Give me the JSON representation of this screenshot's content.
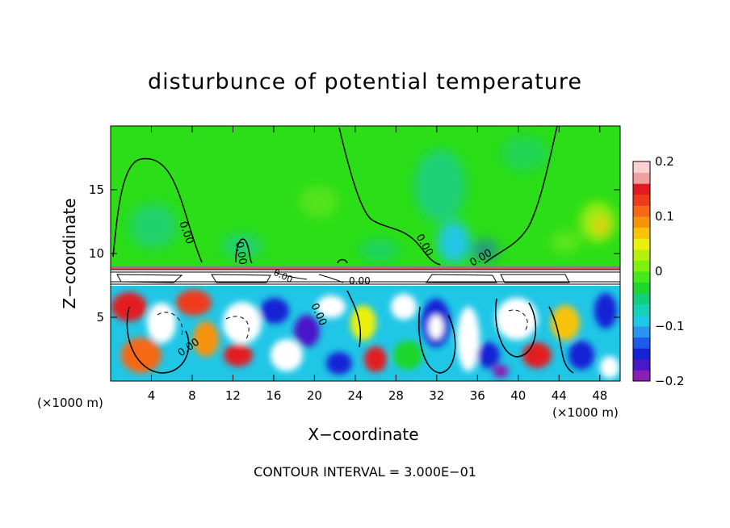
{
  "chart_data": {
    "type": "heatmap",
    "title": "disturbunce of potential temperature",
    "xlabel": "X−coordinate",
    "ylabel": "Z−coordinate",
    "x_unit_label": "(×1000 m)",
    "x_ticks": [
      4,
      8,
      12,
      16,
      20,
      24,
      28,
      32,
      36,
      40,
      44,
      48
    ],
    "y_ticks": [
      5,
      10,
      15
    ],
    "xlim": [
      0,
      50
    ],
    "ylim": [
      0,
      20
    ],
    "colorbar": {
      "range": [
        -0.2,
        0.2
      ],
      "tick_values": [
        0.2,
        0.1,
        0,
        -0.1,
        -0.2
      ],
      "tick_labels": [
        "0.2",
        "0.1",
        "0",
        "−0.1",
        "−0.2"
      ],
      "colors": [
        "#8b1fb5",
        "#4b18c8",
        "#1522d6",
        "#1f5ae8",
        "#2a95f0",
        "#20c6e6",
        "#12d3b8",
        "#12cf7e",
        "#1ed62c",
        "#45e81a",
        "#7ef00e",
        "#b4f00a",
        "#eaf00a",
        "#f7c40a",
        "#f79409",
        "#f56818",
        "#ef3b1c",
        "#e31b21",
        "#f1a0a0",
        "#fbd0d0"
      ]
    },
    "contour_labels": [
      "0.00",
      "0.00",
      "0.00",
      "0.00",
      "0.00",
      "0.00",
      "0.00",
      "0.00"
    ],
    "contour_interval_text": "CONTOUR INTERVAL = 3.000E−01"
  }
}
